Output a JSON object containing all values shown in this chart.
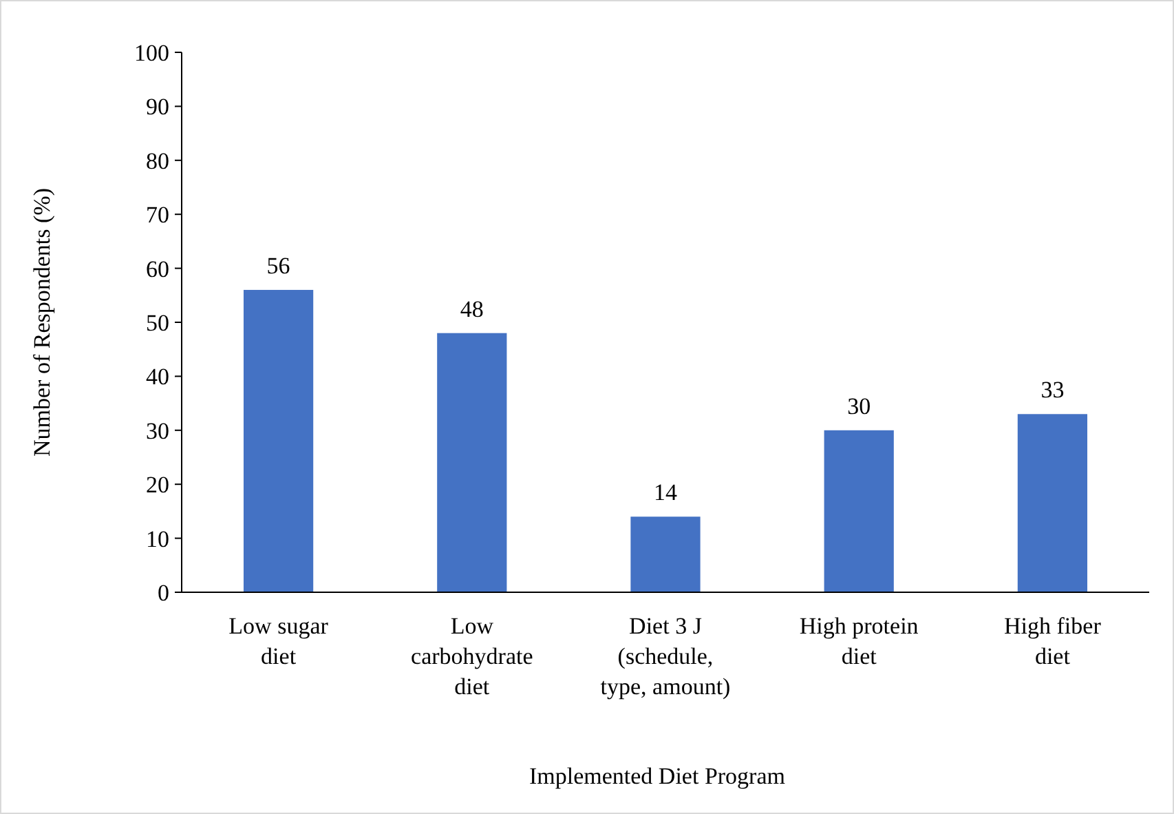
{
  "chart_data": {
    "type": "bar",
    "xlabel": "Implemented Diet Program",
    "ylabel": "Number of Respondents (%)",
    "categories": [
      "Low sugar diet",
      "Low carbohydrate diet",
      "Diet 3 J (schedule, type, amount)",
      "High protein diet",
      "High fiber diet"
    ],
    "values": [
      56,
      48,
      14,
      30,
      33
    ],
    "color": "#4472c4",
    "data_labels": true,
    "ylim": [
      0,
      100
    ],
    "yticks": [
      0,
      10,
      20,
      30,
      40,
      50,
      60,
      70,
      80,
      90,
      100
    ],
    "grid": false
  }
}
